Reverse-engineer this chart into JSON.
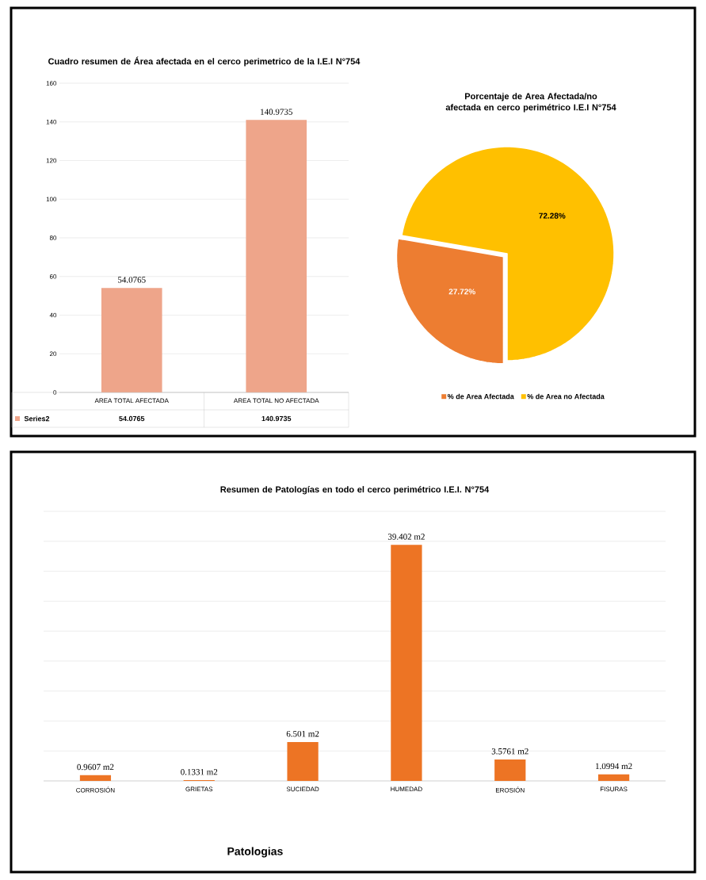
{
  "chart_data": [
    {
      "type": "bar",
      "title": "Cuadro resumen de Área afectada en el cerco perimetrico de la I.E.I N°754",
      "categories": [
        "AREA TOTAL AFECTADA",
        "AREA TOTAL NO AFECTADA"
      ],
      "series": [
        {
          "name": "Series2",
          "color": "#eea58a",
          "values": [
            54.0765,
            140.9735
          ],
          "value_labels": [
            "54.0765",
            "140.9735"
          ]
        }
      ],
      "ylim": [
        0,
        160
      ],
      "yticks": [
        0,
        20,
        40,
        60,
        80,
        100,
        120,
        140,
        160
      ],
      "grid": "y",
      "data_labels": true
    },
    {
      "type": "pie",
      "title": "Porcentaje de Area Afectada/no afectada en cerco perimétrico I.E.I N°754",
      "categories": [
        "% de Area Afectada",
        "% de Area no  Afectada"
      ],
      "values": [
        27.72,
        72.28
      ],
      "colors": [
        "#ed7d31",
        "#ffc000"
      ],
      "value_labels": [
        "27.72%",
        "72.28%"
      ],
      "legend": "bottom"
    },
    {
      "type": "bar",
      "title": "Resumen de Patologías en todo el cerco perimétrico I.E.I. N°754",
      "xlabel": "Patologias",
      "categories": [
        "CORROSIÓN",
        "GRIETAS",
        "SUCIEDAD",
        "HUMEDAD",
        "EROSIÓN",
        "FISURAS"
      ],
      "values": [
        0.9607,
        0.1331,
        6.501,
        39.402,
        3.5761,
        1.0994
      ],
      "color": "#ed7424",
      "value_labels": [
        "0.9607 m2",
        "0.1331 m2",
        "6.501 m2",
        "39.402 m2",
        "3.5761 m2",
        "1.0994 m2"
      ],
      "ylim": [
        0,
        45
      ],
      "yticks": [
        {
          "value": 0,
          "label": null
        },
        {
          "value": 5,
          "label": null
        },
        {
          "value": 10,
          "label": null
        },
        {
          "value": 15,
          "label": null
        },
        {
          "value": 20,
          "label": null
        },
        {
          "value": 25,
          "label": null
        },
        {
          "value": 30,
          "label": null
        },
        {
          "value": 35,
          "label": null
        },
        {
          "value": 40,
          "label": null
        },
        {
          "value": 45,
          "label": null
        }
      ],
      "grid": "y",
      "tick_labels": "x"
    }
  ]
}
